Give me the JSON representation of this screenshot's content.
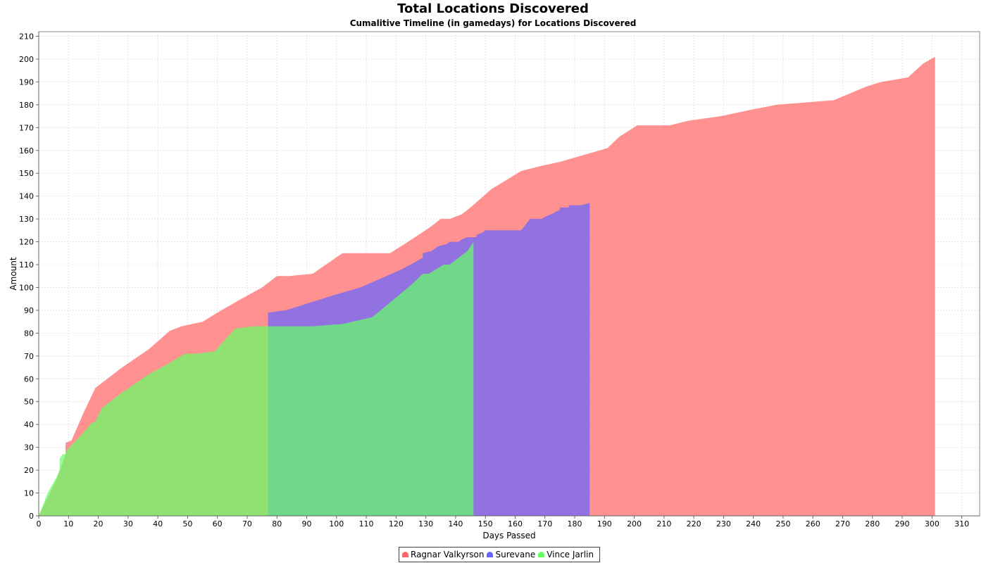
{
  "chart_data": {
    "type": "area",
    "title": "Total Locations Discovered",
    "subtitle": "Cumalitive Timeline (in gamedays) for Locations Discovered",
    "xlabel": "Days Passed",
    "ylabel": "Amount",
    "xlim": [
      0,
      316
    ],
    "ylim": [
      0,
      212
    ],
    "xticks": [
      0,
      10,
      20,
      30,
      40,
      50,
      60,
      70,
      80,
      90,
      100,
      110,
      120,
      130,
      140,
      150,
      160,
      170,
      180,
      190,
      200,
      210,
      220,
      230,
      240,
      250,
      260,
      270,
      280,
      290,
      300,
      310
    ],
    "yticks": [
      0,
      10,
      20,
      30,
      40,
      50,
      60,
      70,
      80,
      90,
      100,
      110,
      120,
      130,
      140,
      150,
      160,
      170,
      180,
      190,
      200,
      210
    ],
    "grid": true,
    "legend_position": "bottom-center",
    "series": [
      {
        "name": "Ragnar Valkyrson",
        "color": "#ff6666",
        "points": [
          [
            0,
            0
          ],
          [
            3,
            8
          ],
          [
            6,
            16
          ],
          [
            9,
            27
          ],
          [
            9,
            32
          ],
          [
            11,
            33
          ],
          [
            15,
            45
          ],
          [
            19,
            56
          ],
          [
            28,
            65
          ],
          [
            37,
            73
          ],
          [
            44,
            81
          ],
          [
            48,
            83
          ],
          [
            55,
            85
          ],
          [
            60,
            89
          ],
          [
            68,
            95
          ],
          [
            75,
            100
          ],
          [
            80,
            105
          ],
          [
            84,
            105
          ],
          [
            92,
            106
          ],
          [
            102,
            115
          ],
          [
            118,
            115
          ],
          [
            124,
            120
          ],
          [
            131,
            126
          ],
          [
            135,
            130
          ],
          [
            138,
            130
          ],
          [
            142,
            132
          ],
          [
            145,
            135
          ],
          [
            152,
            143
          ],
          [
            162,
            151
          ],
          [
            168,
            153
          ],
          [
            175,
            155
          ],
          [
            191,
            161
          ],
          [
            195,
            166
          ],
          [
            201,
            171
          ],
          [
            212,
            171
          ],
          [
            218,
            173
          ],
          [
            229,
            175
          ],
          [
            240,
            178
          ],
          [
            248,
            180
          ],
          [
            267,
            182
          ],
          [
            278,
            188
          ],
          [
            283,
            190
          ],
          [
            292,
            192
          ],
          [
            297,
            198
          ],
          [
            301,
            201
          ],
          [
            301,
            0
          ]
        ]
      },
      {
        "name": "Surevane",
        "color": "#6666ff",
        "points": [
          [
            77,
            0
          ],
          [
            77,
            89
          ],
          [
            83,
            90
          ],
          [
            100,
            97
          ],
          [
            108,
            100
          ],
          [
            122,
            108
          ],
          [
            129,
            113
          ],
          [
            129,
            115
          ],
          [
            132,
            116
          ],
          [
            134,
            118
          ],
          [
            137,
            119
          ],
          [
            138,
            120
          ],
          [
            141,
            120
          ],
          [
            142,
            121
          ],
          [
            144,
            122
          ],
          [
            147,
            122
          ],
          [
            147,
            123
          ],
          [
            149,
            124
          ],
          [
            150,
            125
          ],
          [
            162,
            125
          ],
          [
            165,
            130
          ],
          [
            169,
            130
          ],
          [
            170,
            131
          ],
          [
            172,
            132
          ],
          [
            175,
            134
          ],
          [
            175,
            135
          ],
          [
            178,
            135
          ],
          [
            178,
            136
          ],
          [
            182,
            136
          ],
          [
            185,
            137
          ],
          [
            185,
            0
          ]
        ]
      },
      {
        "name": "Vince Jarlin",
        "color": "#66ff66",
        "points": [
          [
            0,
            0
          ],
          [
            3,
            10
          ],
          [
            6,
            17
          ],
          [
            7,
            20
          ],
          [
            7,
            25
          ],
          [
            8,
            27
          ],
          [
            9,
            27
          ],
          [
            9,
            28
          ],
          [
            11,
            31
          ],
          [
            14,
            35
          ],
          [
            18,
            41
          ],
          [
            19,
            41
          ],
          [
            21,
            47
          ],
          [
            28,
            54
          ],
          [
            37,
            62
          ],
          [
            44,
            67
          ],
          [
            49,
            71
          ],
          [
            53,
            71
          ],
          [
            59,
            72
          ],
          [
            66,
            82
          ],
          [
            72,
            83
          ],
          [
            92,
            83
          ],
          [
            102,
            84
          ],
          [
            112,
            87
          ],
          [
            125,
            101
          ],
          [
            129,
            106
          ],
          [
            131,
            106
          ],
          [
            136,
            110
          ],
          [
            138,
            110
          ],
          [
            141,
            113
          ],
          [
            144,
            116
          ],
          [
            146,
            120
          ],
          [
            146,
            0
          ]
        ]
      }
    ]
  }
}
